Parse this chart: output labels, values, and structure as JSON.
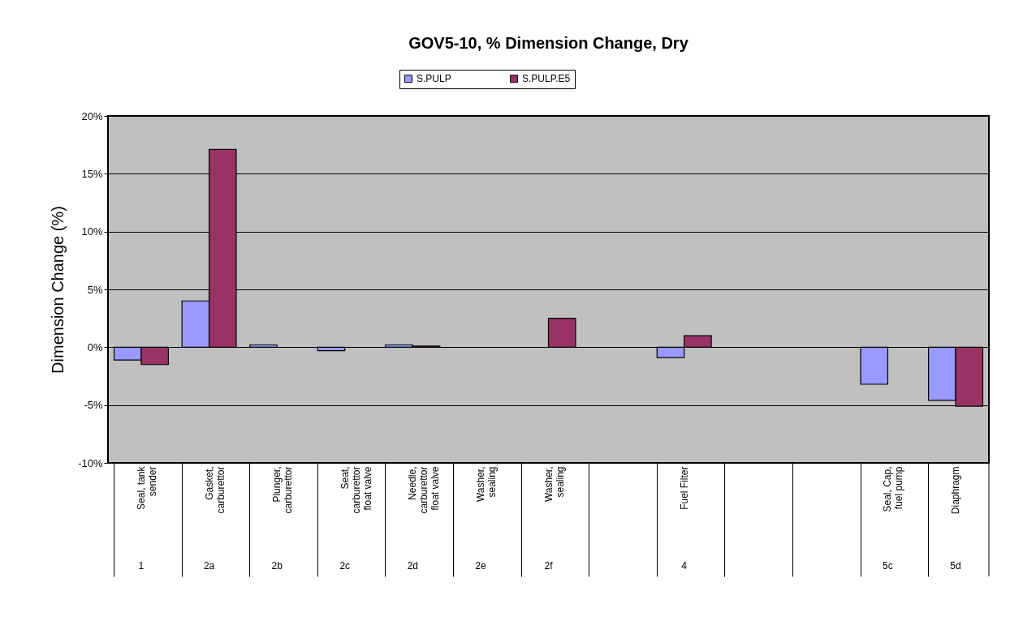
{
  "chart_data": {
    "type": "bar",
    "title": "GOV5-10, % Dimension Change, Dry",
    "ylabel": "Dimension Change (%)",
    "categories": [
      "Seal, tank sender",
      "Gasket, carburettor",
      "Plunger, carburettor",
      "Seat, carburettor float valve",
      "Needle, carburettor float valve",
      "Washer, sealing",
      "Washer, sealing",
      null,
      "Fuel Filter",
      null,
      null,
      "Seal, Cap, fuel pump",
      "Diaphragm"
    ],
    "series": [
      {
        "name": "S.PULP",
        "color": "#9999ff",
        "values": [
          -1.1,
          4.0,
          0.2,
          -0.3,
          0.2,
          null,
          null,
          null,
          -0.9,
          null,
          null,
          -3.2,
          -4.6
        ]
      },
      {
        "name": "S.PULP.E5",
        "color": "#993366",
        "values": [
          -1.5,
          17.1,
          null,
          null,
          0.1,
          null,
          2.5,
          null,
          1.0,
          null,
          null,
          null,
          -5.1
        ]
      }
    ],
    "annotations": [
      "1",
      "2a",
      "2b",
      "2c",
      "2d",
      "2e",
      "2f",
      "4",
      "5c",
      "5d"
    ],
    "ylim": [
      -10,
      20
    ],
    "yticks": [
      {
        "value": -10,
        "label": "-10%"
      },
      {
        "value": -5,
        "label": "-5%"
      },
      {
        "value": 0,
        "label": "0%"
      },
      {
        "value": 5,
        "label": "5%"
      },
      {
        "value": 10,
        "label": "10%"
      },
      {
        "value": 15,
        "label": "15%"
      },
      {
        "value": 20,
        "label": "20%"
      }
    ],
    "grid": "y",
    "legend": "top"
  }
}
